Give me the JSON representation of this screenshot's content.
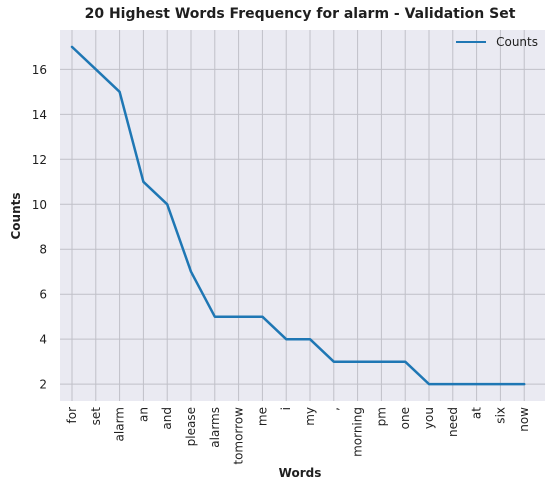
{
  "chart_data": {
    "type": "line",
    "title": "20 Highest Words Frequency for alarm - Validation Set",
    "xlabel": "Words",
    "ylabel": "Counts",
    "categories": [
      "for",
      "set",
      "alarm",
      "an",
      "and",
      "please",
      "alarms",
      "tomorrow",
      "me",
      "i",
      "my",
      ",",
      "morning",
      "pm",
      "one",
      "you",
      "need",
      "at",
      "six",
      "now"
    ],
    "series": [
      {
        "name": "Counts",
        "values": [
          17,
          16,
          15,
          11,
          10,
          7,
          5,
          5,
          5,
          4,
          4,
          3,
          3,
          3,
          3,
          2,
          2,
          2,
          2,
          2
        ]
      }
    ],
    "yticks": [
      2,
      4,
      6,
      8,
      10,
      12,
      14,
      16
    ],
    "ylim": [
      1.25,
      17.75
    ],
    "grid": true,
    "legend_position": "top-right",
    "colors": {
      "line": "#1f77b4",
      "plot_background": "#eaeaf2",
      "grid": "#c0c0c8"
    }
  }
}
